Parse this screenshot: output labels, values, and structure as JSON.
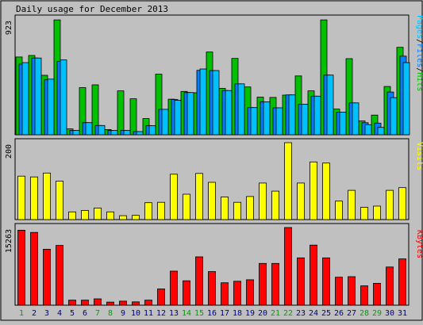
{
  "chart_data": {
    "type": "bar",
    "title": "Daily usage for December 2013",
    "colors": {
      "hits": "#00c000",
      "files": "#0080ff",
      "pages": "#00c0ff",
      "visits": "#ffff00",
      "kbytes": "#ff0000",
      "weekend_label": "#00a000",
      "weekday_label": "#000080",
      "background": "#c0c0c0",
      "panel": "#ffffff"
    },
    "categories": [
      "1",
      "2",
      "3",
      "4",
      "5",
      "6",
      "7",
      "8",
      "9",
      "10",
      "11",
      "12",
      "13",
      "14",
      "15",
      "16",
      "17",
      "18",
      "19",
      "20",
      "21",
      "22",
      "23",
      "24",
      "25",
      "26",
      "27",
      "28",
      "29",
      "30",
      "31"
    ],
    "weekend_days": [
      "1",
      "7",
      "8",
      "14",
      "15",
      "21",
      "22",
      "28",
      "29"
    ],
    "legend_upper": {
      "pages": "Pages",
      "files": "Files",
      "hits": "Hits",
      "sep": "/"
    },
    "panels": [
      {
        "id": "upper",
        "max_label": "923",
        "ymax": 923,
        "series": [
          {
            "name": "Hits",
            "values": [
              620,
              632,
              474,
              916,
              47,
              376,
              398,
              42,
              350,
              287,
              129,
              483,
              284,
              346,
              335,
              660,
              370,
              609,
              381,
              300,
              298,
              316,
              469,
              350,
              916,
              205,
              607,
              110,
              157,
              385,
              697
            ]
          },
          {
            "name": "Files",
            "values": [
              563,
              612,
              438,
              585,
              35,
              97,
              74,
              34,
              35,
              25,
              72,
              203,
              281,
              337,
              514,
              512,
              353,
              406,
              217,
              263,
              215,
              318,
              244,
              308,
              476,
              181,
              254,
              96,
              93,
              341,
              627
            ]
          },
          {
            "name": "Pages",
            "values": [
              575,
              612,
              444,
              597,
              35,
              97,
              74,
              34,
              35,
              25,
              72,
              203,
              275,
              337,
              525,
              512,
              353,
              406,
              217,
              263,
              215,
              318,
              244,
              308,
              476,
              181,
              254,
              80,
              59,
              296,
              575
            ]
          }
        ]
      },
      {
        "id": "middle",
        "max_label": "200",
        "ymax": 200,
        "series": [
          {
            "name": "Visits",
            "values": [
              113,
              111,
              121,
              100,
              20,
              24,
              30,
              20,
              10,
              11,
              44,
              45,
              118,
              66,
              120,
              97,
              59,
              45,
              60,
              95,
              74,
              200,
              95,
              150,
              147,
              48,
              76,
              32,
              35,
              76,
              83
            ]
          }
        ]
      },
      {
        "id": "lower",
        "max_label": "15263",
        "ymax": 15263,
        "series": [
          {
            "name": "KBytes",
            "values": [
              14740,
              14300,
              11000,
              11750,
              1000,
              1000,
              1250,
              600,
              800,
              650,
              1000,
              3200,
              6700,
              4800,
              9500,
              6600,
              4400,
              4700,
              5000,
              8200,
              8200,
              15263,
              9300,
              11800,
              9300,
              5500,
              5600,
              3800,
              4300,
              7500,
              9100
            ]
          }
        ]
      }
    ]
  }
}
